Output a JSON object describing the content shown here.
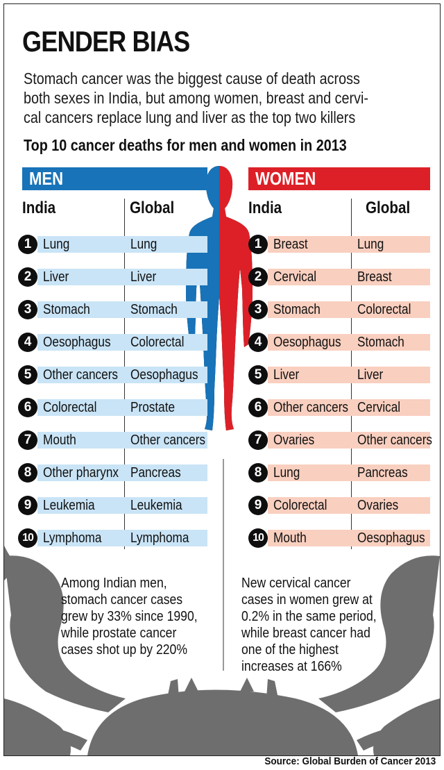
{
  "title": "GENDER BIAS",
  "lede_lines": [
    "Stomach cancer was the biggest cause of death across",
    "both sexes in India, but among women, breast and cervi-",
    "cal cancers replace lung and liver as the top two killers"
  ],
  "subtitle": "Top 10 cancer deaths for men and women in 2013",
  "men": {
    "label": "MEN",
    "col_india": "India",
    "col_global": "Global",
    "india": [
      "Lung",
      "Liver",
      "Stomach",
      "Oesophagus",
      "Other cancers",
      "Colorectal",
      "Mouth",
      "Other pharynx",
      "Leukemia",
      "Lymphoma"
    ],
    "global": [
      "Lung",
      "Liver",
      "Stomach",
      "Colorectal",
      "Oesophagus",
      "Prostate",
      "Other cancers",
      "Pancreas",
      "Leukemia",
      "Lymphoma"
    ],
    "note_lines": [
      "Among Indian men,",
      "stomach cancer cases",
      "grew by 33% since 1990,",
      "while prostate cancer",
      "cases shot up by 220%"
    ]
  },
  "women": {
    "label": "WOMEN",
    "col_india": "India",
    "col_global": "Global",
    "india": [
      "Breast",
      "Cervical",
      "Stomach",
      "Oesophagus",
      "Liver",
      "Other cancers",
      "Ovaries",
      "Lung",
      "Colorectal",
      "Mouth"
    ],
    "global": [
      "Lung",
      "Breast",
      "Colorectal",
      "Stomach",
      "Liver",
      "Cervical",
      "Other cancers",
      "Pancreas",
      "Ovaries",
      "Oesophagus"
    ],
    "note_lines": [
      "New cervical cancer",
      "cases in women grew at",
      "0.2% in the same period,",
      "while breast cancer had",
      "one of the highest",
      "increases at 166%"
    ]
  },
  "ranks": [
    "1",
    "2",
    "3",
    "4",
    "5",
    "6",
    "7",
    "8",
    "9",
    "10"
  ],
  "source": "Source: Global Burden of Cancer 2013",
  "colors": {
    "men_accent": "#1873b8",
    "women_accent": "#dd2027",
    "men_row": "#c9e4f6",
    "women_row": "#f9cfbf",
    "crab": "#6e6e6e"
  },
  "decorations": [
    "human-silhouette-icon",
    "crab-icon"
  ]
}
